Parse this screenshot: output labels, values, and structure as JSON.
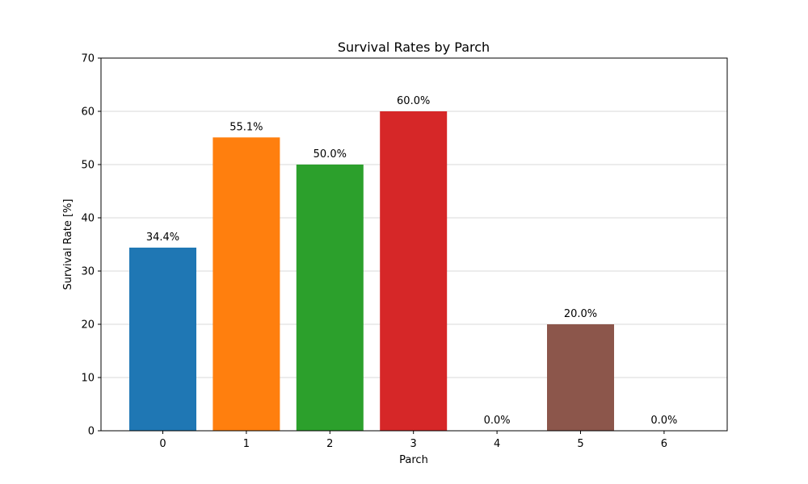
{
  "chart_data": {
    "type": "bar",
    "title": "Survival Rates by Parch",
    "xlabel": "Parch",
    "ylabel": "Survival Rate [%]",
    "categories": [
      "0",
      "1",
      "2",
      "3",
      "4",
      "5",
      "6"
    ],
    "values": [
      34.4,
      55.1,
      50.0,
      60.0,
      0.0,
      20.0,
      0.0
    ],
    "value_labels": [
      "34.4%",
      "55.1%",
      "50.0%",
      "60.0%",
      "0.0%",
      "20.0%",
      "0.0%"
    ],
    "colors": [
      "#1f77b4",
      "#ff7f0e",
      "#2ca02c",
      "#d62728",
      "#9467bd",
      "#8c564b",
      "#e377c2"
    ],
    "ylim": [
      0,
      70
    ],
    "yticks": [
      0,
      10,
      20,
      30,
      40,
      50,
      60,
      70
    ],
    "grid": "horizontal",
    "legend": false
  }
}
